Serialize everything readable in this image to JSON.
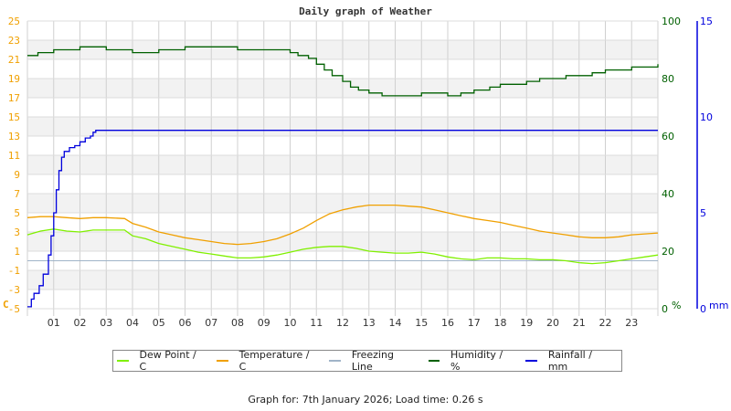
{
  "chart_data": {
    "type": "line",
    "title": "Daily graph of Weather",
    "xlabel": "",
    "x_ticks": [
      "01",
      "02",
      "03",
      "04",
      "05",
      "06",
      "07",
      "08",
      "09",
      "10",
      "11",
      "12",
      "13",
      "14",
      "15",
      "16",
      "17",
      "18",
      "19",
      "20",
      "21",
      "22",
      "23"
    ],
    "x_range_hours": [
      0,
      24
    ],
    "axes": {
      "temperature": {
        "label": "C",
        "side": "left",
        "ticks": [
          25,
          23,
          21,
          19,
          17,
          15,
          13,
          11,
          9,
          7,
          5,
          3,
          1,
          -1,
          -3,
          -5
        ],
        "ylim": [
          -5,
          25
        ],
        "color": "#f0a000"
      },
      "humidity": {
        "label": "%",
        "side": "right",
        "ticks": [
          100,
          80,
          60,
          40,
          20,
          0
        ],
        "ylim": [
          0,
          100
        ],
        "color": "#006000"
      },
      "rainfall": {
        "label": "mm",
        "side": "right",
        "ticks": [
          15,
          10,
          5,
          0
        ],
        "ylim": [
          0,
          15
        ],
        "color": "#0000dd"
      }
    },
    "grid": true,
    "legend_position": "bottom",
    "series": [
      {
        "name": "Dew Point / C",
        "color": "#80f000",
        "axis": "temperature",
        "x": [
          0,
          0.5,
          1,
          1.5,
          2,
          2.5,
          3,
          3.7,
          4,
          4.5,
          5,
          5.5,
          6,
          6.5,
          7,
          7.5,
          8,
          8.5,
          9,
          9.5,
          10,
          10.5,
          11,
          11.5,
          12,
          12.5,
          13,
          13.5,
          14,
          14.5,
          15,
          15.5,
          16,
          16.5,
          17,
          17.5,
          18,
          18.5,
          19,
          19.5,
          20,
          20.5,
          21,
          21.5,
          22,
          22.5,
          23,
          23.5,
          24
        ],
        "values": [
          2.7,
          3.1,
          3.3,
          3.1,
          3.0,
          3.2,
          3.2,
          3.2,
          2.6,
          2.3,
          1.8,
          1.5,
          1.2,
          0.9,
          0.7,
          0.5,
          0.3,
          0.3,
          0.4,
          0.6,
          0.9,
          1.2,
          1.4,
          1.5,
          1.5,
          1.3,
          1.0,
          0.9,
          0.8,
          0.8,
          0.9,
          0.7,
          0.4,
          0.2,
          0.1,
          0.3,
          0.3,
          0.2,
          0.2,
          0.1,
          0.1,
          0.0,
          -0.2,
          -0.3,
          -0.2,
          0.0,
          0.2,
          0.4,
          0.6
        ]
      },
      {
        "name": "Temperature / C",
        "color": "#f0a000",
        "axis": "temperature",
        "x": [
          0,
          0.5,
          1,
          1.5,
          2,
          2.5,
          3,
          3.7,
          4,
          4.5,
          5,
          5.5,
          6,
          6.5,
          7,
          7.5,
          8,
          8.5,
          9,
          9.5,
          10,
          10.5,
          11,
          11.5,
          12,
          12.5,
          13,
          13.5,
          14,
          14.5,
          15,
          15.5,
          16,
          16.5,
          17,
          17.5,
          18,
          18.5,
          19,
          19.5,
          20,
          20.5,
          21,
          21.5,
          22,
          22.5,
          23,
          23.5,
          24
        ],
        "values": [
          4.5,
          4.6,
          4.6,
          4.5,
          4.4,
          4.5,
          4.5,
          4.4,
          3.9,
          3.5,
          3.0,
          2.7,
          2.4,
          2.2,
          2.0,
          1.8,
          1.7,
          1.8,
          2.0,
          2.3,
          2.8,
          3.4,
          4.2,
          4.9,
          5.3,
          5.6,
          5.8,
          5.8,
          5.8,
          5.7,
          5.6,
          5.3,
          5.0,
          4.7,
          4.4,
          4.2,
          4.0,
          3.7,
          3.4,
          3.1,
          2.9,
          2.7,
          2.5,
          2.4,
          2.4,
          2.5,
          2.7,
          2.8,
          2.9
        ]
      },
      {
        "name": "Freezing Line",
        "color": "#a0b4c8",
        "axis": "temperature",
        "x": [
          0,
          24
        ],
        "values": [
          0,
          0
        ]
      },
      {
        "name": "Humidity / %",
        "color": "#006000",
        "axis": "humidity",
        "x": [
          0,
          0.4,
          1,
          1.5,
          2,
          2.5,
          3,
          3.5,
          4,
          4.5,
          5,
          5.5,
          6,
          6.5,
          7,
          7.5,
          8,
          8.5,
          9,
          9.5,
          10,
          10.3,
          10.7,
          11,
          11.3,
          11.6,
          12,
          12.3,
          12.6,
          13,
          13.5,
          14,
          14.5,
          15,
          15.5,
          16,
          16.5,
          17,
          17.3,
          17.6,
          18,
          18.5,
          19,
          19.5,
          20,
          20.5,
          21,
          21.5,
          22,
          22.5,
          23,
          24
        ],
        "values": [
          88,
          89,
          90,
          90,
          91,
          91,
          90,
          90,
          89,
          89,
          90,
          90,
          91,
          91,
          91,
          91,
          90,
          90,
          90,
          90,
          89,
          88,
          87,
          85,
          83,
          81,
          79,
          77,
          76,
          75,
          74,
          74,
          74,
          75,
          75,
          74,
          75,
          76,
          76,
          77,
          78,
          78,
          79,
          80,
          80,
          81,
          81,
          82,
          83,
          83,
          84,
          85
        ]
      },
      {
        "name": "Rainfall / mm",
        "color": "#0000dd",
        "axis": "rainfall",
        "x": [
          0,
          0.15,
          0.25,
          0.45,
          0.6,
          0.8,
          0.9,
          1.0,
          1.1,
          1.2,
          1.3,
          1.4,
          1.6,
          1.8,
          2.0,
          2.2,
          2.4,
          2.5,
          2.6,
          24
        ],
        "values": [
          0.1,
          0.5,
          0.8,
          1.2,
          1.8,
          2.8,
          3.8,
          5.0,
          6.2,
          7.2,
          7.9,
          8.2,
          8.4,
          8.5,
          8.7,
          8.9,
          9.0,
          9.2,
          9.3,
          9.3
        ]
      }
    ],
    "annotations": []
  },
  "legend": [
    {
      "label": "Dew Point / C",
      "color": "#80f000"
    },
    {
      "label": "Temperature / C",
      "color": "#f0a000"
    },
    {
      "label": "Freezing Line",
      "color": "#a0b4c8"
    },
    {
      "label": "Humidity / %",
      "color": "#006000"
    },
    {
      "label": "Rainfall / mm",
      "color": "#0000dd"
    }
  ],
  "footer": {
    "text": "Graph for: 7th January 2026; Load time: 0.26 s"
  }
}
